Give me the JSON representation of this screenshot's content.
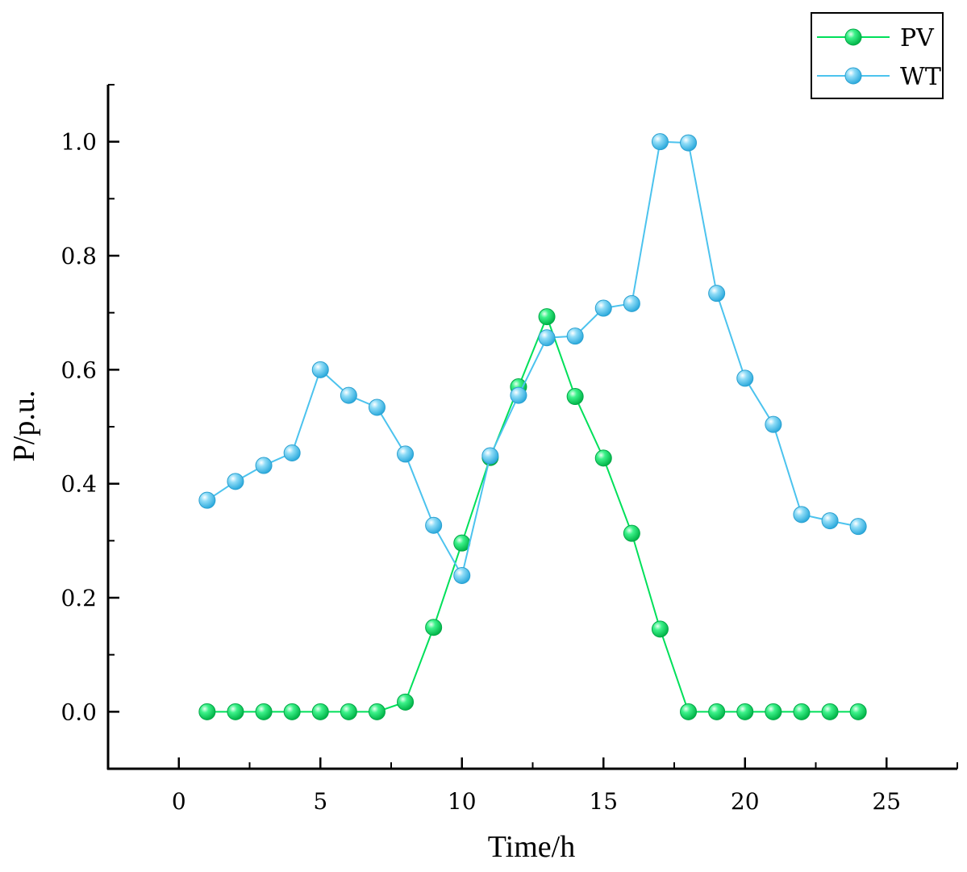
{
  "chart_data": {
    "type": "line",
    "title": "",
    "xlabel": "Time/h",
    "ylabel": "P/p.u.",
    "xlim": [
      -2.5,
      27.5
    ],
    "ylim": [
      -0.1,
      1.1
    ],
    "x_ticks": [
      0,
      5,
      10,
      15,
      20,
      25
    ],
    "x_tick_labels": [
      "0",
      "5",
      "10",
      "15",
      "20",
      "25"
    ],
    "y_ticks": [
      0.0,
      0.2,
      0.4,
      0.6,
      0.8,
      1.0
    ],
    "y_tick_labels": [
      "0.0",
      "0.2",
      "0.4",
      "0.6",
      "0.8",
      "1.0"
    ],
    "grid": false,
    "legend_position": "top-right",
    "x": [
      1,
      2,
      3,
      4,
      5,
      6,
      7,
      8,
      9,
      10,
      11,
      12,
      13,
      14,
      15,
      16,
      17,
      18,
      19,
      20,
      21,
      22,
      23,
      24
    ],
    "series": [
      {
        "name": "PV",
        "color": "#00e05a",
        "values": [
          0,
          0,
          0,
          0,
          0,
          0,
          0,
          0.017,
          0.148,
          0.296,
          0.446,
          0.57,
          0.693,
          0.553,
          0.445,
          0.313,
          0.145,
          0,
          0,
          0,
          0,
          0,
          0,
          0
        ]
      },
      {
        "name": "WT",
        "color": "#4cc3ee",
        "values": [
          0.371,
          0.404,
          0.432,
          0.454,
          0.6,
          0.555,
          0.534,
          0.452,
          0.327,
          0.239,
          0.449,
          0.555,
          0.656,
          0.659,
          0.708,
          0.716,
          1.0,
          0.998,
          0.734,
          0.585,
          0.504,
          0.346,
          0.335,
          0.325
        ]
      }
    ]
  }
}
